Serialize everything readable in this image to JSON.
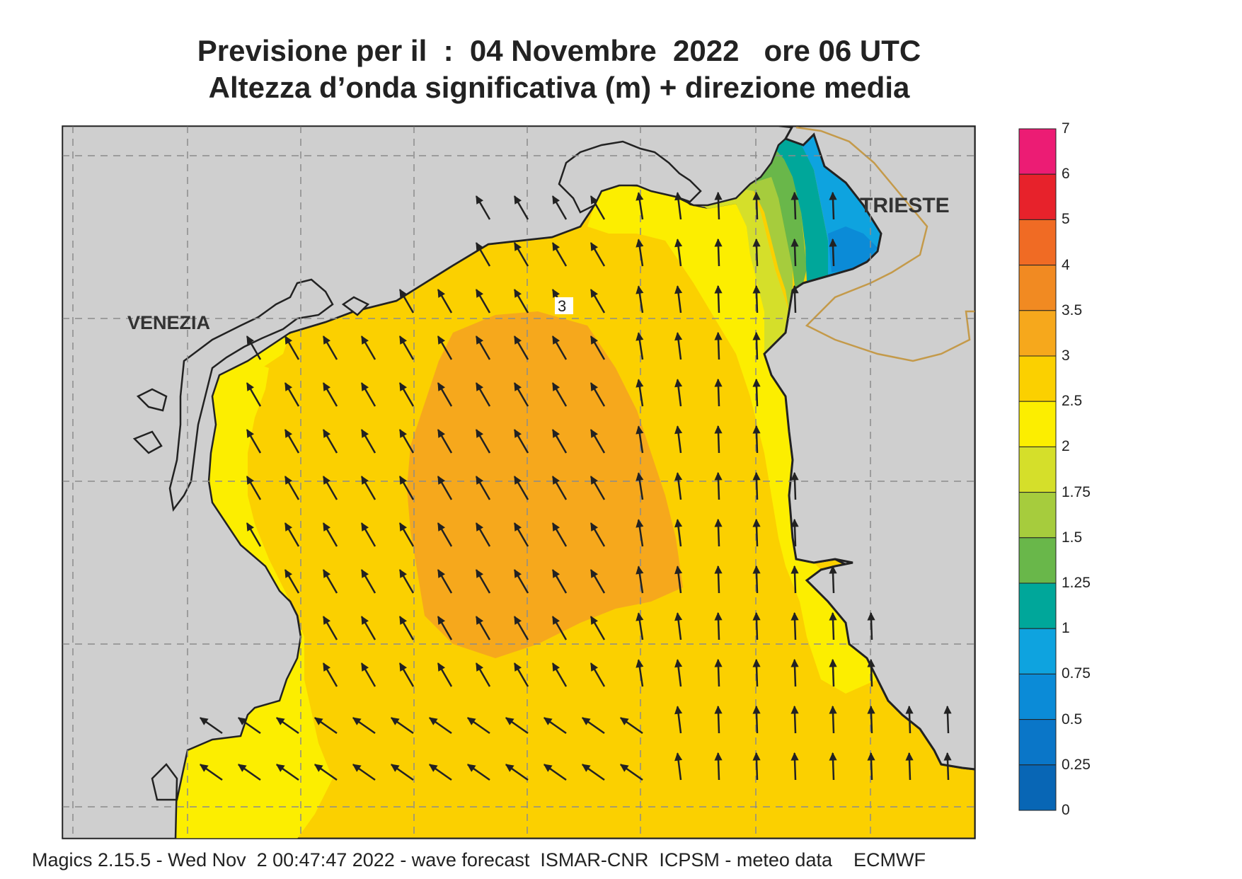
{
  "header": {
    "title_line1": "Previsione per il  :  04 Novembre  2022   ore 06 UTC",
    "title_line2": "Altezza d’onda significativa (m) + direzione media"
  },
  "map": {
    "cities": [
      "VENEZIA",
      "TRIESTE"
    ],
    "contour_label": "3",
    "colors": {
      "land": "#cfcfcf",
      "sea_2_2_5": "#fcee00",
      "sea_2_5_3": "#fbd000",
      "sea_3_3_5": "#f6a81c",
      "coast": "#222222",
      "border": "#c49a4a"
    }
  },
  "legend": {
    "labels": [
      "7",
      "6",
      "5",
      "4",
      "3.5",
      "3",
      "2.5",
      "2",
      "1.75",
      "1.5",
      "1.25",
      "1",
      "0.75",
      "0.5",
      "0.25",
      "0"
    ],
    "colors": [
      "#ec1c74",
      "#e7222b",
      "#f06b24",
      "#f18a22",
      "#f6a81c",
      "#fbd000",
      "#fcee00",
      "#d5df2a",
      "#a6cc3d",
      "#69b74a",
      "#00a79a",
      "#0ea3df",
      "#0b8bd7",
      "#0a76c8",
      "#0866b5"
    ]
  },
  "footer": "Magics 2.15.5 - Wed Nov  2 00:47:47 2022 - wave forecast  ISMAR-CNR  ICPSM - meteo data    ECMWF"
}
